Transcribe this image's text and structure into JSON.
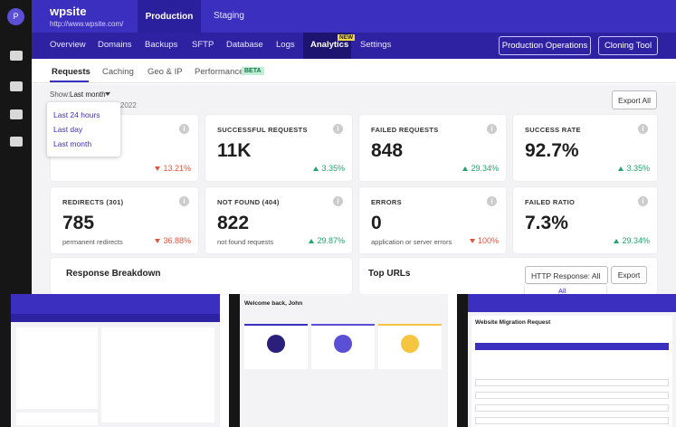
{
  "header": {
    "site_name": "wpsite",
    "site_url": "http://www.wpsite.com/",
    "avatar": "P",
    "env_tabs": [
      "Production",
      "Staging"
    ]
  },
  "nav": {
    "items": [
      "Overview",
      "Domains",
      "Backups",
      "SFTP",
      "Database",
      "Logs",
      "Analytics",
      "Settings"
    ],
    "new_badge": "NEW",
    "buttons": [
      "Production Operations",
      "Cloning Tool"
    ]
  },
  "subtabs": {
    "items": [
      "Requests",
      "Caching",
      "Geo & IP",
      "Performance"
    ],
    "beta_badge": "BETA"
  },
  "filter": {
    "label": "Show:",
    "selected": "Last month",
    "options": [
      "Last 24 hours",
      "Last day",
      "Last month"
    ],
    "date_fragment": "2022"
  },
  "export_all": "Export All",
  "stat_cards": [
    {
      "change": "13.21%",
      "trend": "down"
    },
    {
      "label": "SUCCESSFUL REQUESTS",
      "value": "11K",
      "change": "3.35%",
      "trend": "up"
    },
    {
      "label": "FAILED REQUESTS",
      "value": "848",
      "change": "29.34%",
      "trend": "up"
    },
    {
      "label": "SUCCESS RATE",
      "value": "92.7%",
      "change": "3.35%",
      "trend": "up"
    },
    {
      "label": "REDIRECTS (301)",
      "value": "785",
      "sublabel": "permanent redirects",
      "change": "36.88%",
      "trend": "down"
    },
    {
      "label": "NOT FOUND (404)",
      "value": "822",
      "sublabel": "not found requests",
      "change": "29.87%",
      "trend": "up"
    },
    {
      "label": "ERRORS",
      "value": "0",
      "sublabel": "application or server errors",
      "change": "100%",
      "trend": "down"
    },
    {
      "label": "FAILED RATIO",
      "value": "7.3%",
      "change": "29.34%",
      "trend": "up"
    }
  ],
  "panels": {
    "response_breakdown": "Response Breakdown",
    "top_urls": "Top URLs",
    "http_filter": "HTTP Response: All",
    "export": "Export",
    "dropdown_option": "All"
  },
  "thumbnails": {
    "welcome": "Welcome back, John",
    "migration": "Website Migration Request"
  }
}
